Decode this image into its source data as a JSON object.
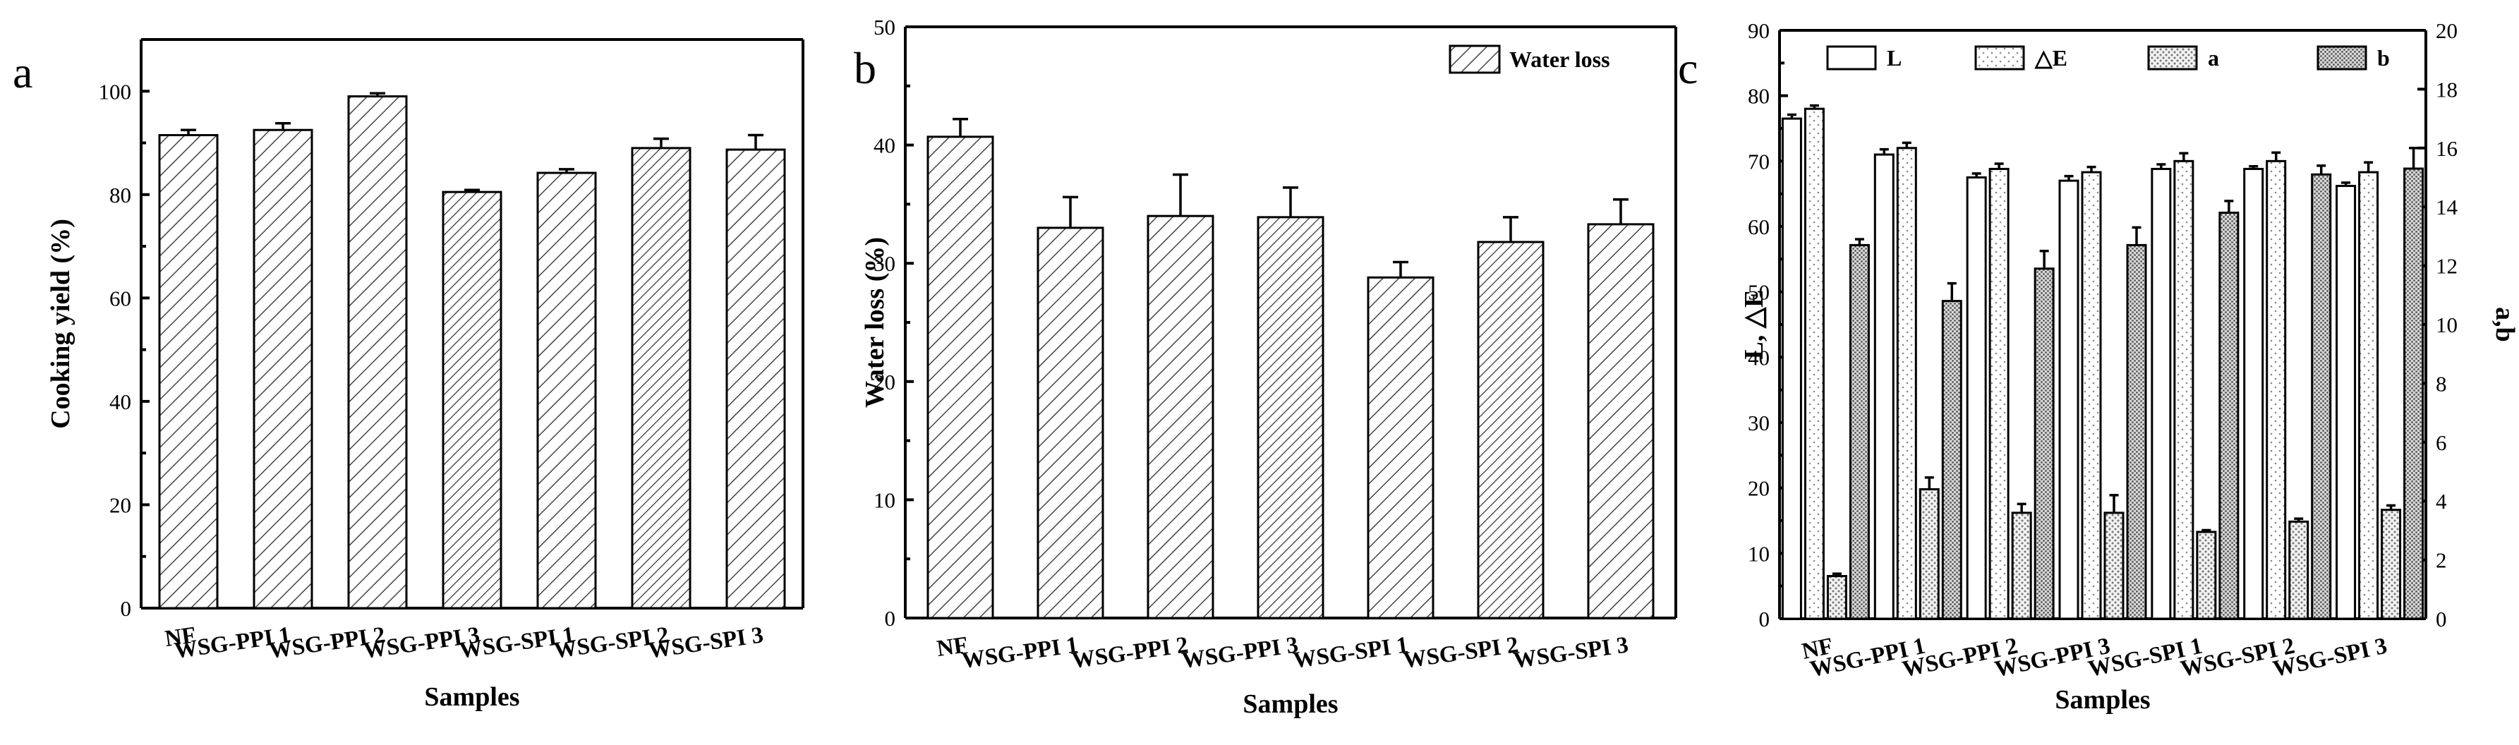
{
  "chart_data": [
    {
      "panel": "a",
      "type": "bar",
      "ylabel": "Cooking yield (%)",
      "xlabel": "Samples",
      "ylim": [
        0,
        110
      ],
      "yticks": [
        0,
        20,
        40,
        60,
        80,
        100
      ],
      "categories": [
        "NF",
        "WSG-PPI 1",
        "WSG-PPI 2",
        "WSG-PPI 3",
        "WSG-SPI 1",
        "WSG-SPI 2",
        "WSG-SPI 3"
      ],
      "series": [
        {
          "name": "Cooking yield",
          "values": [
            91.5,
            92.5,
            99.0,
            80.5,
            84.2,
            89.0,
            88.7
          ],
          "errors": [
            1.0,
            1.3,
            0.6,
            0.4,
            0.7,
            1.8,
            2.8
          ]
        }
      ]
    },
    {
      "panel": "b",
      "type": "bar",
      "ylabel": "Water loss (%)",
      "xlabel": "Samples",
      "ylim": [
        0,
        50
      ],
      "yticks": [
        0,
        10,
        20,
        30,
        40,
        50
      ],
      "legend": [
        "Water loss"
      ],
      "categories": [
        "NF",
        "WSG-PPI 1",
        "WSG-PPI 2",
        "WSG-PPI 3",
        "WSG-SPI 1",
        "WSG-SPI 2",
        "WSG-SPI 3"
      ],
      "series": [
        {
          "name": "Water loss",
          "values": [
            40.7,
            33.0,
            34.0,
            33.9,
            28.8,
            31.8,
            33.3
          ],
          "errors": [
            1.5,
            2.6,
            3.5,
            2.5,
            1.3,
            2.1,
            2.1
          ]
        }
      ]
    },
    {
      "panel": "c",
      "type": "bar",
      "ylabel": "L, △E",
      "y2label": "a,b",
      "xlabel": "Samples",
      "ylim": [
        0,
        90
      ],
      "yticks": [
        0,
        10,
        20,
        30,
        40,
        50,
        60,
        70,
        80,
        90
      ],
      "y2lim": [
        0,
        20
      ],
      "y2ticks": [
        0,
        2,
        4,
        6,
        8,
        10,
        12,
        14,
        16,
        18,
        20
      ],
      "legend": [
        "L",
        "△E",
        "a",
        "b"
      ],
      "categories": [
        "NF",
        "WSG-PPI 1",
        "WSG-PPI 2",
        "WSG-PPI 3",
        "WSG-SPI 1",
        "WSG-SPI 2",
        "WSG-SPI 3"
      ],
      "series": [
        {
          "name": "L",
          "axis": "left",
          "values": [
            76.5,
            71.0,
            67.5,
            67.0,
            68.8,
            68.8,
            66.2
          ],
          "errors": [
            0.6,
            0.8,
            0.6,
            0.7,
            0.7,
            0.4,
            0.5
          ]
        },
        {
          "name": "△E",
          "axis": "left",
          "values": [
            78.0,
            72.0,
            68.8,
            68.3,
            70.0,
            70.0,
            68.3
          ],
          "errors": [
            0.5,
            0.8,
            0.8,
            0.8,
            1.2,
            1.3,
            1.5
          ]
        },
        {
          "name": "a",
          "axis": "right",
          "values": [
            1.45,
            4.4,
            3.6,
            3.6,
            2.95,
            3.3,
            3.7
          ],
          "errors": [
            0.08,
            0.4,
            0.3,
            0.6,
            0.06,
            0.1,
            0.15
          ]
        },
        {
          "name": "b",
          "axis": "right",
          "values": [
            12.7,
            10.8,
            11.9,
            12.7,
            13.8,
            15.1,
            15.3
          ],
          "errors": [
            0.2,
            0.6,
            0.6,
            0.6,
            0.4,
            0.3,
            0.7
          ]
        }
      ]
    }
  ],
  "labels": {
    "panel_a": "a",
    "panel_b": "b",
    "panel_c": "c"
  }
}
